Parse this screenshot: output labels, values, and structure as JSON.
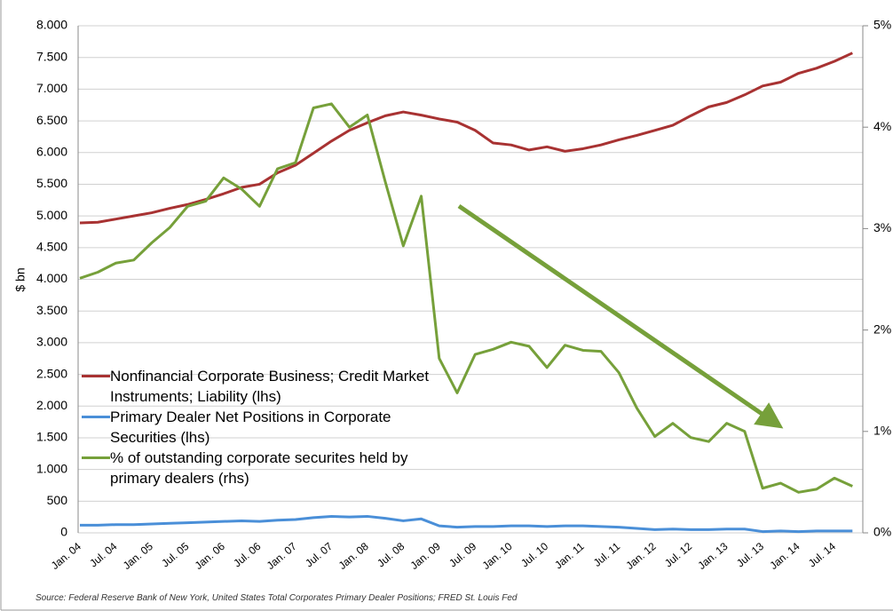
{
  "chart_data": {
    "type": "line",
    "y_label": "$ bn",
    "source": "Source: Federal Reserve Bank of New York, United States Total Corporates Primary Dealer Positions; FRED St. Louis Fed",
    "categories": [
      "Jan. 04",
      null,
      "Jul. 04",
      null,
      "Jan. 05",
      null,
      "Jul. 05",
      null,
      "Jan. 06",
      null,
      "Jul. 06",
      null,
      "Jan. 07",
      null,
      "Jul. 07",
      null,
      "Jan. 08",
      null,
      "Jul. 08",
      null,
      "Jan. 09",
      null,
      "Jul. 09",
      null,
      "Jan. 10",
      null,
      "Jul. 10",
      null,
      "Jan. 11",
      null,
      "Jul. 11",
      null,
      "Jan. 12",
      null,
      "Jul. 12",
      null,
      "Jan. 13",
      null,
      "Jul. 13",
      null,
      "Jan. 14",
      null,
      "Jul. 14",
      null
    ],
    "series": [
      {
        "name": "Nonfinancial Corporate Business; Credit Market Instruments; Liability (lhs)",
        "color": "#a83232",
        "values": [
          4890,
          4900,
          4950,
          5000,
          5050,
          5120,
          5180,
          5260,
          5350,
          5450,
          5500,
          5680,
          5800,
          5990,
          6180,
          6350,
          6470,
          6580,
          6640,
          6590,
          6530,
          6480,
          6350,
          6150,
          6120,
          6040,
          6090,
          6020,
          6060,
          6120,
          6200,
          6270,
          6350,
          6430,
          6580,
          6720,
          6790,
          6910,
          7050,
          7110,
          7250,
          7330,
          7440,
          7570
        ]
      },
      {
        "name": "Primary Dealer Net Positions in Corporate Securities (lhs)",
        "color": "#4a8fd8",
        "values": [
          120,
          120,
          130,
          130,
          140,
          150,
          160,
          170,
          180,
          190,
          180,
          200,
          210,
          240,
          260,
          250,
          260,
          230,
          190,
          220,
          110,
          90,
          100,
          100,
          110,
          110,
          100,
          110,
          110,
          100,
          90,
          70,
          50,
          60,
          50,
          50,
          60,
          60,
          20,
          30,
          20,
          30,
          30,
          30
        ]
      },
      {
        "name": "% of outstanding corporate securites held by primary dealers (rhs)",
        "color": "#76a03a",
        "axis": "y2",
        "values": [
          2.51,
          2.57,
          2.66,
          2.69,
          2.86,
          3.01,
          3.22,
          3.27,
          3.5,
          3.39,
          3.22,
          3.59,
          3.65,
          4.19,
          4.23,
          4.0,
          4.12,
          3.46,
          2.83,
          3.32,
          1.72,
          1.38,
          1.76,
          1.81,
          1.88,
          1.84,
          1.63,
          1.85,
          1.8,
          1.79,
          1.58,
          1.23,
          0.95,
          1.08,
          0.94,
          0.9,
          1.08,
          1.0,
          0.44,
          0.49,
          0.4,
          0.43,
          0.54,
          0.46
        ]
      }
    ],
    "ylim": [
      0,
      8000
    ],
    "yticks": [
      {
        "value": 0,
        "label": "0"
      },
      {
        "value": 500,
        "label": "500"
      },
      {
        "value": 1000,
        "label": "1.000"
      },
      {
        "value": 1500,
        "label": "1.500"
      },
      {
        "value": 2000,
        "label": "2.000"
      },
      {
        "value": 2500,
        "label": "2.500"
      },
      {
        "value": 3000,
        "label": "3.000"
      },
      {
        "value": 3500,
        "label": "3.500"
      },
      {
        "value": 4000,
        "label": "4.000"
      },
      {
        "value": 4500,
        "label": "4.500"
      },
      {
        "value": 5000,
        "label": "5.000"
      },
      {
        "value": 5500,
        "label": "5.500"
      },
      {
        "value": 6000,
        "label": "6.000"
      },
      {
        "value": 6500,
        "label": "6.500"
      },
      {
        "value": 7000,
        "label": "7.000"
      },
      {
        "value": 7500,
        "label": "7.500"
      },
      {
        "value": 8000,
        "label": "8.000"
      }
    ],
    "y2lim": [
      0,
      5
    ],
    "y2ticks": [
      {
        "value": 0,
        "label": "0%"
      },
      {
        "value": 1,
        "label": "1%"
      },
      {
        "value": 2,
        "label": "2%"
      },
      {
        "value": 3,
        "label": "3%"
      },
      {
        "value": 4,
        "label": "4%"
      },
      {
        "value": 5,
        "label": "5%"
      }
    ],
    "grid": true
  }
}
